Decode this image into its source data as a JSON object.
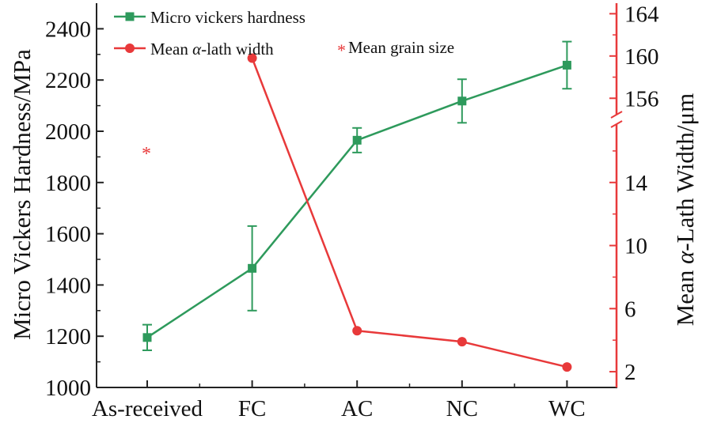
{
  "chart_data": {
    "type": "line",
    "categories": [
      "As-received",
      "FC",
      "AC",
      "NC",
      "WC"
    ],
    "y_left": {
      "label": "Micro Vickers Hardness/MPa",
      "lim": [
        1000,
        2500
      ],
      "ticks": [
        1000,
        1200,
        1400,
        1600,
        1800,
        2000,
        2200,
        2400
      ]
    },
    "y_right": {
      "label_prefix": "Mean ",
      "label_symbol": "α",
      "label_suffix": "-Lath Width/μm",
      "lower_lim": [
        1,
        18
      ],
      "lower_ticks": [
        2,
        6,
        10,
        14
      ],
      "upper_lim": [
        154,
        165
      ],
      "upper_ticks": [
        156,
        160,
        164
      ],
      "axis_break": true
    },
    "series": [
      {
        "name": "Micro vickers hardness",
        "axis": "left",
        "marker": "square",
        "color": "#2e9a5c",
        "values": [
          1195,
          1465,
          1965,
          2118,
          2258
        ],
        "error": [
          50,
          165,
          48,
          85,
          92
        ]
      },
      {
        "name_prefix": "Mean ",
        "name_symbol": "α",
        "name_suffix": "-lath width",
        "axis": "right",
        "marker": "circle",
        "color": "#e8393a",
        "values": [
          null,
          159.8,
          4.6,
          3.9,
          2.3
        ]
      },
      {
        "name": "Mean grain size",
        "axis": "right",
        "marker": "asterisk",
        "color": "#e8393a",
        "values": [
          16,
          null,
          null,
          null,
          null
        ]
      }
    ],
    "legend_position": "top-left",
    "grid": false
  }
}
